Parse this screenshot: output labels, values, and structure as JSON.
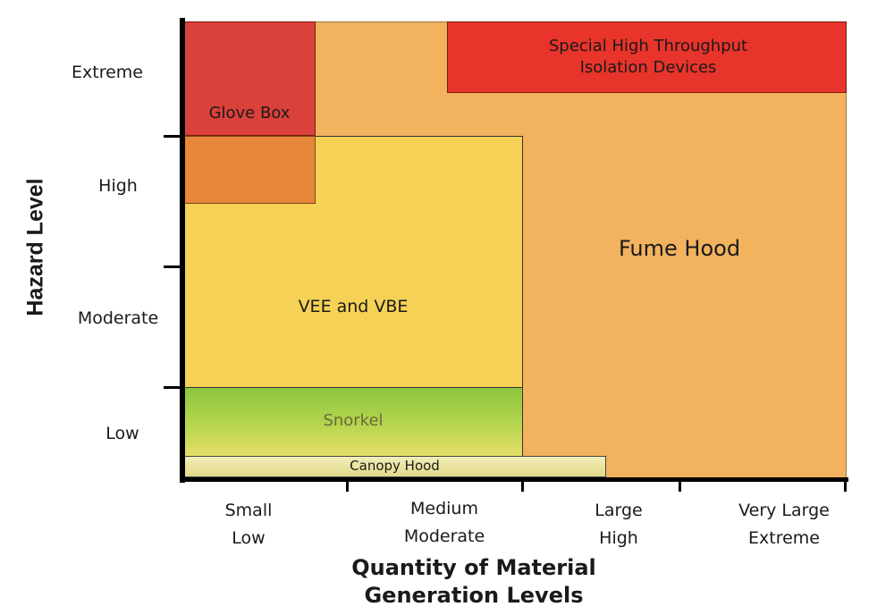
{
  "axes": {
    "y_title": "Hazard Level",
    "x_title_line1": "Quantity of Material",
    "x_title_line2": "Generation Levels",
    "y_levels": [
      "Extreme",
      "High",
      "Moderate",
      "Low"
    ],
    "x_levels": [
      {
        "line1": "Small",
        "line2": "Low"
      },
      {
        "line1": "Medium",
        "line2": "Moderate"
      },
      {
        "line1": "Large",
        "line2": "High"
      },
      {
        "line1": "Very Large",
        "line2": "Extreme"
      }
    ]
  },
  "regions": {
    "fume_hood": {
      "label": "Fume Hood",
      "color": "#F2B25E"
    },
    "special_isolation": {
      "line1": "Special High Throughput",
      "line2": "Isolation Devices",
      "color": "#E8342A"
    },
    "glove_box": {
      "label": "Glove Box",
      "color": "#D9413A"
    },
    "vee_vbe": {
      "label": "VEE and VBE",
      "color": "#F5D155"
    },
    "overlap": {
      "color": "#E8863A"
    },
    "snorkel": {
      "label": "Snorkel",
      "color_top": "#8CC63F",
      "color_bottom": "#E8E06A"
    },
    "canopy_hood": {
      "label": "Canopy Hood",
      "color": "#EDE6A2"
    }
  }
}
